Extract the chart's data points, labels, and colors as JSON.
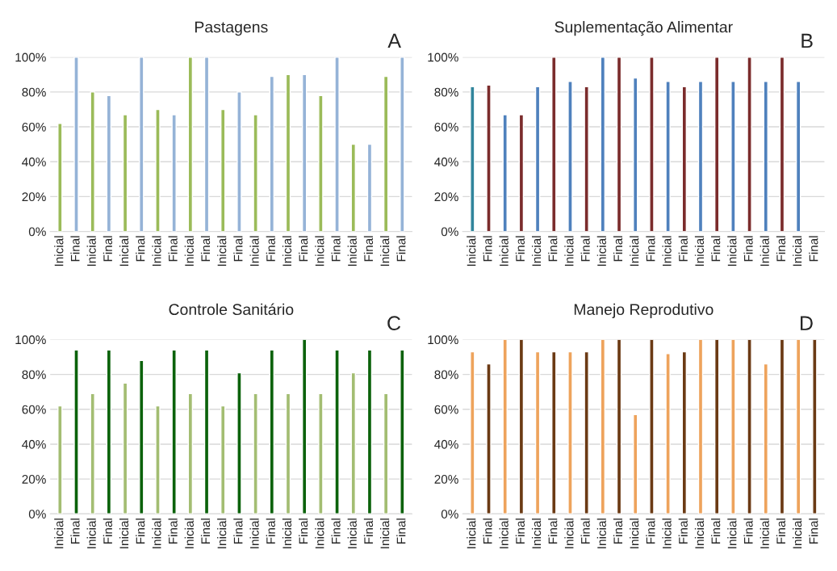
{
  "chart_data": [
    {
      "type": "bar",
      "title": "Pastagens",
      "annotations": [
        "A"
      ],
      "categories": [
        "Inicial",
        "Final",
        "Inicial",
        "Final",
        "Inicial",
        "Final",
        "Inicial",
        "Final",
        "Inicial",
        "Final",
        "Inicial",
        "Final",
        "Inicial",
        "Final",
        "Inicial",
        "Final",
        "Inicial",
        "Final",
        "Inicial",
        "Final",
        "Inicial",
        "Final"
      ],
      "values": [
        62,
        100,
        80,
        78,
        67,
        100,
        70,
        67,
        100,
        100,
        70,
        80,
        67,
        89,
        90,
        90,
        78,
        100,
        50,
        50,
        89,
        100
      ],
      "colors": [
        "#9bbb59",
        "#95b3d7",
        "#9bbb59",
        "#95b3d7",
        "#9bbb59",
        "#95b3d7",
        "#9bbb59",
        "#95b3d7",
        "#9bbb59",
        "#95b3d7",
        "#9bbb59",
        "#95b3d7",
        "#9bbb59",
        "#95b3d7",
        "#9bbb59",
        "#95b3d7",
        "#9bbb59",
        "#95b3d7",
        "#9bbb59",
        "#95b3d7",
        "#9bbb59",
        "#95b3d7"
      ],
      "ylim": [
        0,
        100
      ],
      "yticks": [
        {
          "value": 0,
          "label": "0%"
        },
        {
          "value": 20,
          "label": "20%"
        },
        {
          "value": 40,
          "label": "40%"
        },
        {
          "value": 60,
          "label": "60%"
        },
        {
          "value": 80,
          "label": "80%"
        },
        {
          "value": 100,
          "label": "100%"
        }
      ],
      "grid": "y"
    },
    {
      "type": "bar",
      "title": "Suplementação Alimentar",
      "annotations": [
        "B"
      ],
      "categories": [
        "Inicial",
        "Final",
        "Inicial",
        "Final",
        "Inicial",
        "Final",
        "Inicial",
        "Final",
        "Inicial",
        "Final",
        "Inicial",
        "Final",
        "Inicial",
        "Final",
        "Inicial",
        "Final",
        "Inicial",
        "Final",
        "Inicial",
        "Final",
        "Inicial",
        "Final"
      ],
      "values": [
        83,
        84,
        67,
        67,
        83,
        100,
        86,
        83,
        100,
        100,
        88,
        100,
        86,
        83,
        86,
        100,
        86,
        100,
        86,
        100,
        86,
        null
      ],
      "colors": [
        "#31859c",
        "#7b2c2c",
        "#4f81bd",
        "#7b2c2c",
        "#4f81bd",
        "#7b2c2c",
        "#4f81bd",
        "#7b2c2c",
        "#4f81bd",
        "#7b2c2c",
        "#4f81bd",
        "#7b2c2c",
        "#4f81bd",
        "#7b2c2c",
        "#4f81bd",
        "#7b2c2c",
        "#4f81bd",
        "#7b2c2c",
        "#4f81bd",
        "#7b2c2c",
        "#4f81bd",
        "#7b2c2c"
      ],
      "ylim": [
        0,
        100
      ],
      "yticks": [
        {
          "value": 0,
          "label": "0%"
        },
        {
          "value": 20,
          "label": "20%"
        },
        {
          "value": 40,
          "label": "40%"
        },
        {
          "value": 60,
          "label": "60%"
        },
        {
          "value": 80,
          "label": "80%"
        },
        {
          "value": 100,
          "label": "100%"
        }
      ],
      "grid": "y"
    },
    {
      "type": "bar",
      "title": "Controle Sanitário",
      "annotations": [
        "C"
      ],
      "categories": [
        "Inicial",
        "Final",
        "Inicial",
        "Final",
        "Inicial",
        "Final",
        "Inicial",
        "Final",
        "Inicial",
        "Final",
        "Inicial",
        "Final",
        "Inicial",
        "Final",
        "Inicial",
        "Final",
        "Inicial",
        "Final",
        "Inicial",
        "Final",
        "Inicial",
        "Final"
      ],
      "values": [
        62,
        94,
        69,
        94,
        75,
        88,
        62,
        94,
        69,
        94,
        62,
        81,
        69,
        94,
        69,
        100,
        69,
        94,
        81,
        94,
        69,
        94
      ],
      "colors": [
        "#a3bd72",
        "#0b620b",
        "#a3bd72",
        "#0b620b",
        "#a3bd72",
        "#0b620b",
        "#a3bd72",
        "#0b620b",
        "#a3bd72",
        "#0b620b",
        "#a3bd72",
        "#0b620b",
        "#a3bd72",
        "#0b620b",
        "#a3bd72",
        "#0b620b",
        "#a3bd72",
        "#0b620b",
        "#a3bd72",
        "#0b620b",
        "#a3bd72",
        "#0b620b"
      ],
      "ylim": [
        0,
        100
      ],
      "yticks": [
        {
          "value": 0,
          "label": "0%"
        },
        {
          "value": 20,
          "label": "20%"
        },
        {
          "value": 40,
          "label": "40%"
        },
        {
          "value": 60,
          "label": "60%"
        },
        {
          "value": 80,
          "label": "80%"
        },
        {
          "value": 100,
          "label": "100%"
        }
      ],
      "grid": "y"
    },
    {
      "type": "bar",
      "title": "Manejo Reprodutivo",
      "annotations": [
        "D"
      ],
      "categories": [
        "Inicial",
        "Final",
        "Inicial",
        "Final",
        "Inicial",
        "Final",
        "Inicial",
        "Final",
        "Inicial",
        "Final",
        "Inicial",
        "Final",
        "Inicial",
        "Final",
        "Inicial",
        "Final",
        "Inicial",
        "Final",
        "Inicial",
        "Final",
        "Inicial",
        "Final"
      ],
      "values": [
        93,
        86,
        100,
        100,
        93,
        93,
        93,
        93,
        100,
        100,
        57,
        100,
        92,
        93,
        100,
        100,
        100,
        100,
        86,
        100,
        100,
        100
      ],
      "colors": [
        "#eea35c",
        "#6b3a14",
        "#eea35c",
        "#6b3a14",
        "#eea35c",
        "#6b3a14",
        "#eea35c",
        "#6b3a14",
        "#eea35c",
        "#6b3a14",
        "#eea35c",
        "#6b3a14",
        "#eea35c",
        "#6b3a14",
        "#eea35c",
        "#6b3a14",
        "#eea35c",
        "#6b3a14",
        "#eea35c",
        "#6b3a14",
        "#eea35c",
        "#6b3a14"
      ],
      "ylim": [
        0,
        100
      ],
      "yticks": [
        {
          "value": 0,
          "label": "0%"
        },
        {
          "value": 20,
          "label": "20%"
        },
        {
          "value": 40,
          "label": "40%"
        },
        {
          "value": 60,
          "label": "60%"
        },
        {
          "value": 80,
          "label": "80%"
        },
        {
          "value": 100,
          "label": "100%"
        }
      ],
      "grid": "y"
    }
  ]
}
